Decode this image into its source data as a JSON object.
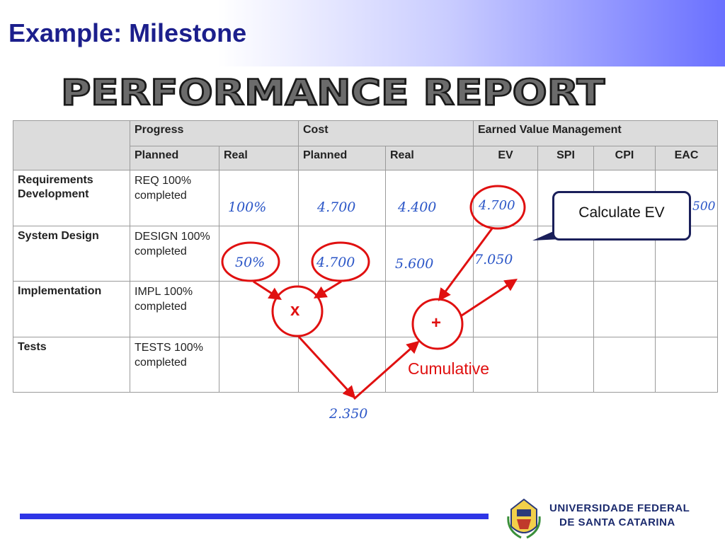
{
  "slide": {
    "title": "Example: Milestone"
  },
  "banner": {
    "text": "PERFORMANCE REPORT"
  },
  "table": {
    "group_headers": [
      "Progress",
      "Cost",
      "Earned Value Management"
    ],
    "sub_headers": [
      "Planned",
      "Real",
      "Planned",
      "Real",
      "EV",
      "SPI",
      "CPI",
      "EAC"
    ],
    "rows": [
      {
        "label": "Requirements Development",
        "planned": "REQ 100% completed"
      },
      {
        "label": "System Design",
        "planned": "DESIGN 100% completed"
      },
      {
        "label": "Implementation",
        "planned": "IMPL 100% completed"
      },
      {
        "label": "Tests",
        "planned": "TESTS 100% completed"
      }
    ]
  },
  "handwritten": {
    "req_real": "100%",
    "req_cost_planned": "4.700",
    "req_cost_real": "4.400",
    "req_ev": "4.700",
    "req_eac_partial": "500",
    "design_real": "50%",
    "design_cost_planned": "4.700",
    "design_cost_real": "5.600",
    "design_ev": "7.050",
    "result": "2.350"
  },
  "callout": {
    "text": "Calculate EV"
  },
  "operators": {
    "multiply": "x",
    "add": "+"
  },
  "annotation": {
    "cumulative": "Cumulative"
  },
  "logo": {
    "line1": "UNIVERSIDADE FEDERAL",
    "line2": "DE SANTA CATARINA"
  },
  "colors": {
    "title": "#1c1f8c",
    "annotation_red": "#e01010",
    "handwriting_blue": "#2b56c7",
    "footer_line": "#2e35e6"
  }
}
